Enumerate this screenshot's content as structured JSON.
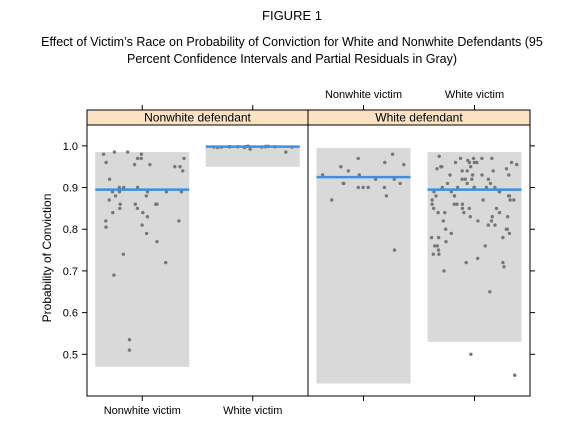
{
  "figure_label": "FIGURE 1",
  "title": "Effect of Victim’s Race on Probability of Conviction for White and Nonwhite Defendants (95 Percent Confidence Intervals and Partial Residuals in Gray)",
  "chart_data": {
    "type": "scatter",
    "ylabel": "Probability of Conviction",
    "ylim": [
      0.4,
      1.05
    ],
    "yticks": [
      0.5,
      0.6,
      0.7,
      0.8,
      0.9,
      1.0
    ],
    "ytick_labels": [
      "0.5",
      "0.6",
      "0.7",
      "0.8",
      "0.9",
      "1.0"
    ],
    "categories": [
      "Nonwhite victim",
      "White victim"
    ],
    "top_axis_labels": [
      "Nonwhite victim",
      "White victim"
    ],
    "bottom_axis_labels": [
      "Nonwhite victim",
      "White victim"
    ],
    "colors": {
      "strip": "#fbe2c3",
      "ci_band": "#d9d9d9",
      "estimate_line": "#3d8fe0",
      "residual_point": "#777777"
    },
    "panels": [
      {
        "strip_label": "Nonwhite defendant",
        "groups": [
          {
            "category": "Nonwhite victim",
            "estimate": 0.895,
            "ci": [
              0.47,
              0.985
            ],
            "residuals": [
              0.98,
              0.89,
              0.87,
              0.86,
              0.85,
              0.84,
              0.805,
              0.95,
              0.955,
              0.955,
              0.9,
              0.89,
              0.86,
              0.82,
              0.81,
              0.89,
              0.86,
              0.84,
              0.83,
              0.97,
              0.985,
              0.98,
              0.95,
              0.94,
              0.92,
              0.9,
              0.89,
              0.88,
              0.86,
              0.79,
              0.77,
              0.74,
              0.69,
              0.97,
              0.97,
              0.9,
              0.88,
              0.985,
              0.89,
              0.72,
              0.535,
              0.51,
              0.96,
              0.82,
              0.85
            ]
          },
          {
            "category": "White victim",
            "estimate": 0.998,
            "ci": [
              0.95,
              1.0
            ],
            "residuals": [
              0.985,
              0.992,
              0.998,
              0.997,
              0.996,
              0.998,
              0.999,
              0.997,
              0.998,
              0.999,
              0.996,
              0.997,
              0.998,
              0.999,
              0.998,
              0.997,
              0.998,
              0.999
            ]
          }
        ]
      },
      {
        "strip_label": "White defendant",
        "groups": [
          {
            "category": "Nonwhite victim",
            "estimate": 0.925,
            "ci": [
              0.43,
              0.995
            ],
            "residuals": [
              0.9,
              0.97,
              0.98,
              0.93,
              0.9,
              0.91,
              0.95,
              0.9,
              0.87,
              0.91,
              0.88,
              0.92,
              0.955,
              0.91,
              0.75,
              0.96,
              0.92,
              0.9,
              0.93,
              0.94
            ]
          },
          {
            "category": "White victim",
            "estimate": 0.895,
            "ci": [
              0.53,
              0.985
            ],
            "residuals": [
              0.94,
              0.93,
              0.92,
              0.91,
              0.9,
              0.88,
              0.87,
              0.86,
              0.85,
              0.97,
              0.96,
              0.975,
              0.955,
              0.95,
              0.945,
              0.93,
              0.92,
              0.9,
              0.89,
              0.88,
              0.86,
              0.85,
              0.84,
              0.83,
              0.82,
              0.81,
              0.8,
              0.79,
              0.78,
              0.77,
              0.76,
              0.75,
              0.74,
              0.73,
              0.72,
              0.71,
              0.7,
              0.9,
              0.88,
              0.96,
              0.97,
              0.945,
              0.92,
              0.89,
              0.86,
              0.84,
              0.82,
              0.8,
              0.78,
              0.76,
              0.74,
              0.72,
              0.95,
              0.93,
              0.91,
              0.87,
              0.85,
              0.83,
              0.81,
              0.97,
              0.96,
              0.94,
              0.9,
              0.88,
              0.86,
              0.84,
              0.8,
              0.78,
              0.76,
              0.91,
              0.9,
              0.89,
              0.87,
              0.85,
              0.84,
              0.82,
              0.79,
              0.96,
              0.965,
              0.95,
              0.93,
              0.92,
              0.9,
              0.88,
              0.65,
              0.5,
              0.45,
              0.83,
              0.94,
              0.96,
              0.97,
              0.89,
              0.87
            ]
          }
        ]
      }
    ]
  }
}
